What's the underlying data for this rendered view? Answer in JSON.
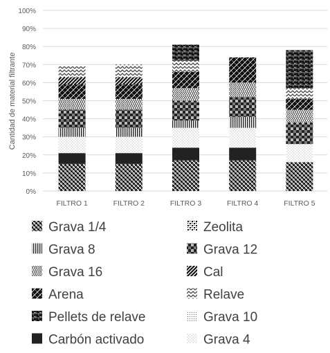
{
  "chart_data": {
    "type": "bar",
    "stacked": true,
    "percent_stacked": true,
    "title": "",
    "xlabel": "",
    "ylabel": "Cantidad de material filtrante",
    "ylim": [
      0,
      100
    ],
    "yticks": [
      "0%",
      "10%",
      "20%",
      "30%",
      "40%",
      "50%",
      "60%",
      "70%",
      "80%",
      "90%",
      "100%"
    ],
    "grid": true,
    "legend_position": "bottom",
    "categories": [
      "FILTRO 1",
      "FILTRO 2",
      "FILTRO 3",
      "FILTRO 4",
      "FILTRO 5"
    ],
    "series": [
      {
        "name": "Grava 1/4",
        "pattern": "checker",
        "values": [
          15,
          15,
          17,
          17,
          16
        ]
      },
      {
        "name": "Carbón activado",
        "pattern": "solid",
        "values": [
          6,
          6,
          7,
          7,
          0
        ]
      },
      {
        "name": "Grava 4",
        "pattern": "dots",
        "values": [
          9,
          9,
          11,
          11,
          10
        ]
      },
      {
        "name": "Grava 8",
        "pattern": "vlines",
        "values": [
          5,
          5,
          4,
          6,
          0
        ]
      },
      {
        "name": "Grava 12",
        "pattern": "bigcheck",
        "values": [
          10,
          10,
          11,
          11,
          12
        ]
      },
      {
        "name": "Grava 16",
        "pattern": "weave",
        "values": [
          6,
          6,
          7,
          8,
          7
        ]
      },
      {
        "name": "Arena",
        "pattern": "brick",
        "values": [
          8,
          8,
          9,
          14,
          6
        ]
      },
      {
        "name": "Cal",
        "pattern": "diag",
        "values": [
          4,
          4,
          0,
          0,
          0
        ]
      },
      {
        "name": "Relave",
        "pattern": "zigzag",
        "values": [
          6,
          7,
          6,
          0,
          6
        ]
      },
      {
        "name": "Grava 10",
        "pattern": "finedots",
        "values": [
          0,
          0,
          0,
          0,
          0
        ]
      },
      {
        "name": "Pellets de relave",
        "pattern": "brick2",
        "values": [
          0,
          0,
          9,
          0,
          21
        ]
      },
      {
        "name": "Zeolita",
        "pattern": "crosshatch",
        "values": [
          0,
          0,
          0,
          0,
          0
        ]
      }
    ]
  }
}
